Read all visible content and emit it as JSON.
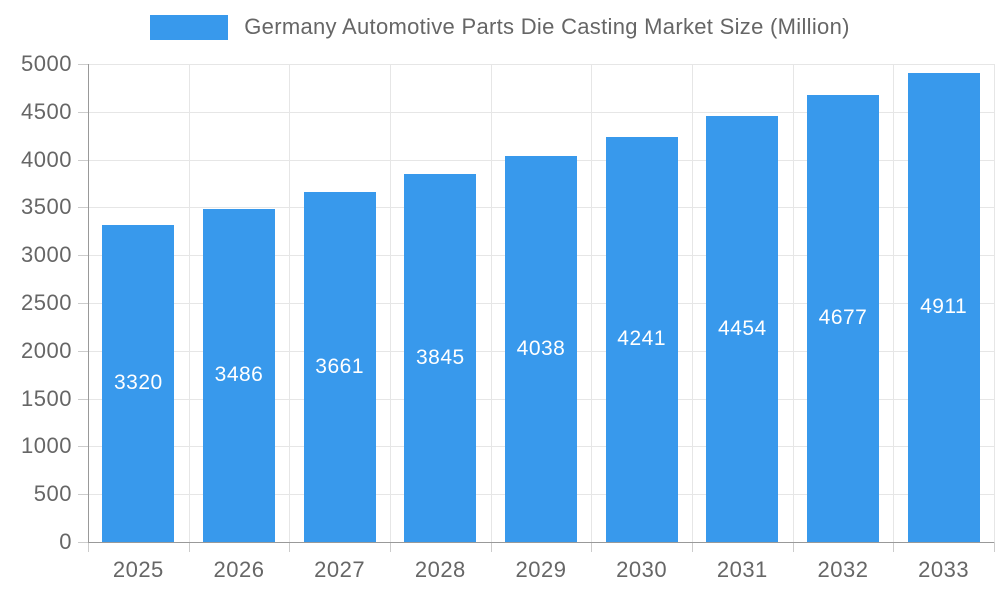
{
  "legend": {
    "label": "Germany Automotive Parts Die Casting Market Size (Million)"
  },
  "chart_data": {
    "type": "bar",
    "title": "Germany Automotive Parts Die Casting Market Size (Million)",
    "series_name": "Germany Automotive Parts Die Casting Market Size (Million)",
    "categories": [
      "2025",
      "2026",
      "2027",
      "2028",
      "2029",
      "2030",
      "2031",
      "2032",
      "2033"
    ],
    "values": [
      3320,
      3486,
      3661,
      3845,
      4038,
      4241,
      4454,
      4677,
      4911
    ],
    "bar_labels": [
      "3320",
      "3486",
      "3661",
      "3845",
      "4038",
      "4241",
      "4454",
      "4677",
      "4911"
    ],
    "xlabel": "",
    "ylabel": "",
    "ylim": [
      0,
      5000
    ],
    "ytick_step": 500,
    "ytick_labels": [
      "0",
      "500",
      "1000",
      "1500",
      "2000",
      "2500",
      "3000",
      "3500",
      "4000",
      "4500",
      "5000"
    ],
    "grid": true,
    "legend_position": "top-center",
    "bar_label_position": "inside-center",
    "colors": {
      "bar": "#3899EC",
      "bar_label": "#FFFFFF",
      "text": "#666666",
      "grid": "#E6E6E6",
      "axis": "#999999",
      "tick": "#CCCCCC",
      "background": "#FFFFFF"
    }
  }
}
